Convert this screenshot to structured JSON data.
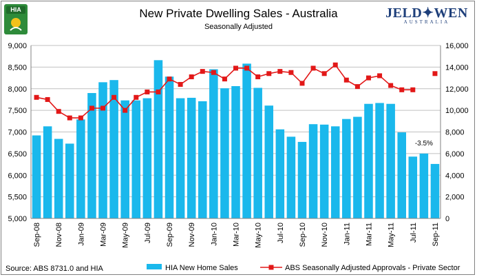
{
  "header": {
    "title": "New Private Dwelling Sales - Australia",
    "subtitle": "Seasonally Adjusted",
    "brand_main": "JELD✦WEN",
    "brand_sub": "AUSTRALIA",
    "logo_text": "HIA"
  },
  "footer": {
    "source": "Source: ABS 8731.0 and HIA"
  },
  "colors": {
    "bar": "#1ab8ec",
    "line": "#e21818",
    "grid": "#c0c0c0",
    "brand": "#1e3f7a",
    "logo_green": "#2e8b3a"
  },
  "chart_data": {
    "type": "bar+line",
    "title": "New Private Dwelling Sales - Australia",
    "subtitle": "Seasonally Adjusted",
    "xlabel": "",
    "categories": [
      "Sep-08",
      "Oct-08",
      "Nov-08",
      "Dec-08",
      "Jan-09",
      "Feb-09",
      "Mar-09",
      "Apr-09",
      "May-09",
      "Jun-09",
      "Jul-09",
      "Aug-09",
      "Sep-09",
      "Oct-09",
      "Nov-09",
      "Dec-09",
      "Jan-10",
      "Feb-10",
      "Mar-10",
      "Apr-10",
      "May-10",
      "Jun-10",
      "Jul-10",
      "Aug-10",
      "Sep-10",
      "Oct-10",
      "Nov-10",
      "Dec-10",
      "Jan-11",
      "Feb-11",
      "Mar-11",
      "Apr-11",
      "May-11",
      "Jun-11",
      "Jul-11",
      "Aug-11",
      "Sep-11"
    ],
    "tick_labels": [
      "Sep-08",
      "Nov-08",
      "Jan-09",
      "Mar-09",
      "May-09",
      "Jul-09",
      "Sep-09",
      "Nov-09",
      "Jan-10",
      "Mar-10",
      "May-10",
      "Jul-10",
      "Sep-10",
      "Nov-10",
      "Jan-11",
      "Mar-11",
      "May-11",
      "Jul-11",
      "Sep-11"
    ],
    "left_axis": {
      "min": 5000,
      "max": 9000,
      "step": 500,
      "tick_labels": [
        "5,000",
        "5,500",
        "6,000",
        "6,500",
        "7,000",
        "7,500",
        "8,000",
        "8,500",
        "9,000"
      ]
    },
    "right_axis": {
      "min": 0,
      "max": 16000,
      "step": 2000,
      "tick_labels": [
        "0",
        "2,000",
        "4,000",
        "6,000",
        "8,000",
        "10,000",
        "12,000",
        "14,000",
        "16,000"
      ]
    },
    "series": [
      {
        "name": "HIA New Home Sales",
        "type": "bar",
        "axis": "left",
        "values": [
          6920,
          7130,
          6840,
          6730,
          7290,
          7900,
          8150,
          8200,
          7730,
          7730,
          7780,
          8660,
          8280,
          7780,
          7790,
          7710,
          8450,
          8010,
          8060,
          8580,
          8020,
          7610,
          7060,
          6890,
          6770,
          7180,
          7170,
          7130,
          7300,
          7350,
          7650,
          7670,
          7650,
          6990,
          6430,
          6500,
          6260
        ]
      },
      {
        "name": "ABS Seasonally Adjusted Approvals - Private Sector",
        "type": "line",
        "axis": "right",
        "values": [
          11200,
          11000,
          9900,
          9300,
          9300,
          10200,
          10200,
          11200,
          10000,
          11200,
          11700,
          11700,
          12900,
          12400,
          13100,
          13600,
          13500,
          12900,
          13900,
          13900,
          13100,
          13400,
          13600,
          13500,
          12500,
          13900,
          13400,
          14200,
          12800,
          12200,
          13000,
          13200,
          12300,
          11900,
          11900,
          null,
          13400
        ]
      }
    ],
    "annotations": [
      {
        "label": "-3.5%",
        "category": "Aug-11"
      }
    ],
    "legend_position": "bottom",
    "grid": true
  }
}
